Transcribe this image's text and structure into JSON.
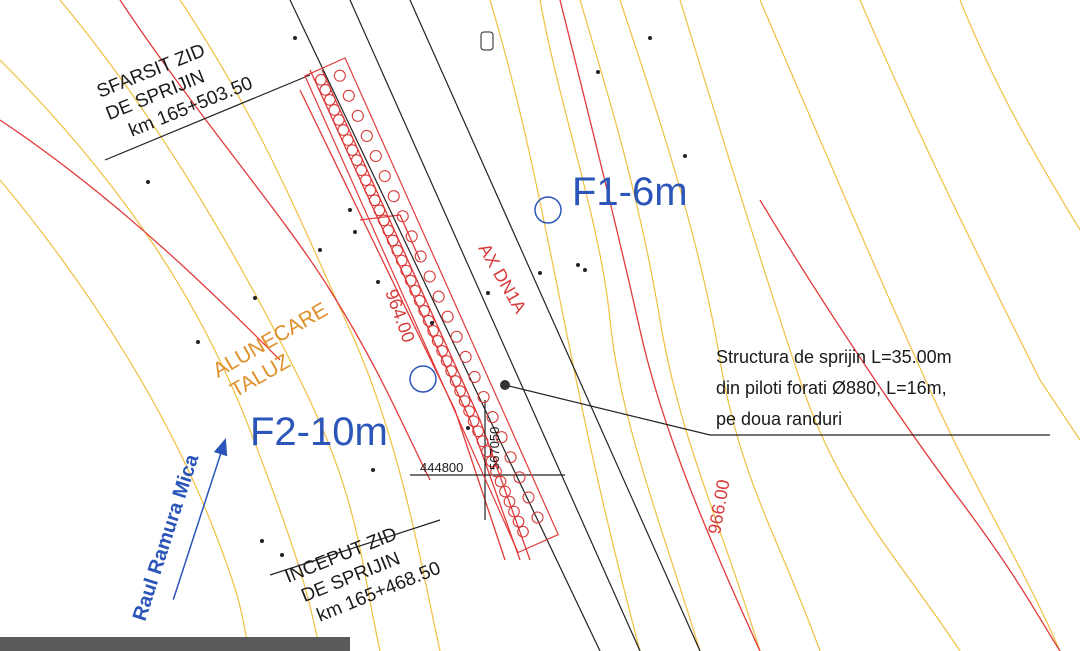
{
  "labels": {
    "end_wall": [
      "SFARSIT ZID",
      "DE SPRIJIN",
      "km 165+503.50"
    ],
    "start_wall": [
      "INCEPUT ZID",
      "DE SPRIJIN",
      "km 165+468.50"
    ],
    "f1": "F1-6m",
    "f2": "F2-10m",
    "axis": "AX DN1A",
    "landslide": [
      "ALUNECARE",
      "TALUZ"
    ],
    "contour_a": "964.00",
    "contour_b": "966.00",
    "coord_x": "444800",
    "coord_y": "567050",
    "river": "Raul Ramura Mica",
    "note": [
      "Structura de sprijin L=35.00m",
      "din piloti forati Ø880, L=16m,",
      "pe doua randuri"
    ]
  }
}
